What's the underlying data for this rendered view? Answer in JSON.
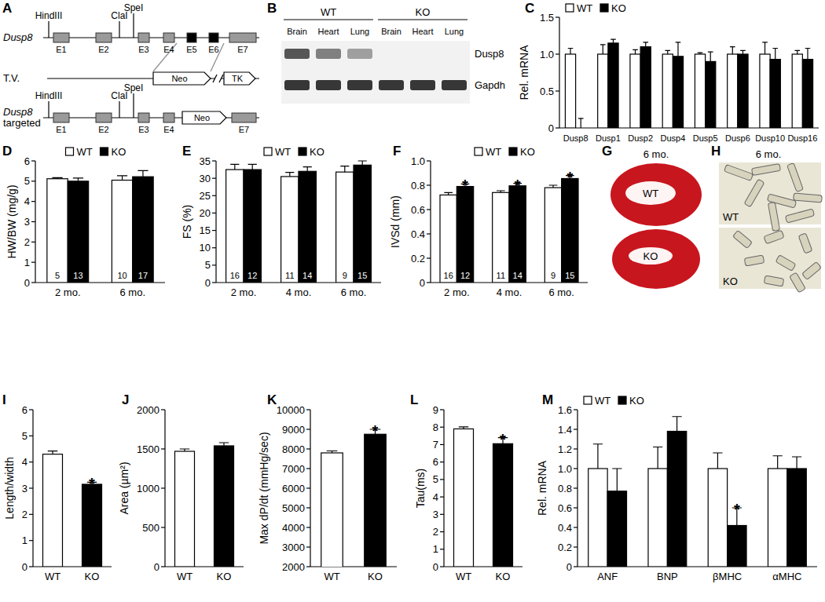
{
  "diagram": {
    "panel": "A",
    "alleles": [
      {
        "label": [
          "Dusp8"
        ],
        "sites": [
          "HindIII",
          "ClaI",
          "SpeI"
        ],
        "elements": [
          "E1",
          "E2",
          "E3",
          "E4",
          "E5",
          "E6",
          "E7"
        ]
      },
      {
        "label": [
          "T.V."
        ],
        "elements": [
          "Neo",
          "TK"
        ]
      },
      {
        "label": [
          "Dusp8",
          "targeted"
        ],
        "sites": [
          "HindIII",
          "ClaI",
          "SpeI"
        ],
        "elements": [
          "E1",
          "E2",
          "E3",
          "E4",
          "Neo",
          "E7"
        ]
      }
    ]
  },
  "gel": {
    "panel": "B",
    "groups": [
      "WT",
      "KO"
    ],
    "lanes": [
      "Brain",
      "Heart",
      "Lung",
      "Brain",
      "Heart",
      "Lung"
    ],
    "rows": [
      {
        "label": "Dusp8",
        "intensity": [
          0.75,
          0.55,
          0.4,
          0,
          0,
          0
        ]
      },
      {
        "label": "Gapdh",
        "intensity": [
          0.9,
          0.9,
          0.9,
          0.9,
          0.9,
          0.9
        ]
      }
    ]
  },
  "images": [
    {
      "panel": "G",
      "title": "6 mo.",
      "labels": [
        "WT",
        "KO"
      ]
    },
    {
      "panel": "H",
      "title": "6 mo.",
      "labels": [
        "WT",
        "KO"
      ]
    }
  ],
  "chart_data": [
    {
      "panel": "C",
      "type": "bar",
      "y_label": "Rel. mRNA",
      "categories": [
        "Dusp8",
        "Dusp1",
        "Dusp2",
        "Dusp4",
        "Dusp5",
        "Dusp6",
        "Dusp10",
        "Dusp16"
      ],
      "series": [
        {
          "name": "WT",
          "color": "#ffffff",
          "values": [
            1,
            1,
            1,
            1,
            1,
            1,
            1,
            1
          ],
          "errors": [
            0.08,
            0.13,
            0.06,
            0.05,
            0.02,
            0.1,
            0.16,
            0.05
          ]
        },
        {
          "name": "KO",
          "color": "#000000",
          "values": [
            0,
            1.15,
            1.1,
            0.97,
            0.9,
            1.0,
            0.93,
            0.93
          ],
          "errors": [
            0.13,
            0.05,
            0.06,
            0.19,
            0.13,
            0.05,
            0.15,
            0.15
          ]
        }
      ],
      "ylim": [
        0,
        1.5
      ],
      "yticks": [
        0,
        0.5,
        {
          "value": 1,
          "label": "1.0"
        },
        1.5
      ],
      "legend": "top-left"
    },
    {
      "panel": "D",
      "type": "bar",
      "y_label": "HW/BW (mg/g)",
      "categories": [
        "2 mo.",
        "6 mo."
      ],
      "series": [
        {
          "name": "WT",
          "color": "#ffffff",
          "values": [
            5.12,
            5.05
          ],
          "errors": [
            0.05,
            0.22
          ],
          "n": [
            5,
            10
          ]
        },
        {
          "name": "KO",
          "color": "#000000",
          "values": [
            5.0,
            5.22
          ],
          "errors": [
            0.15,
            0.3
          ],
          "n": [
            13,
            17
          ]
        }
      ],
      "ylim": [
        0,
        6
      ],
      "yticks": [
        0,
        1,
        2,
        3,
        4,
        5,
        6
      ],
      "legend": "top"
    },
    {
      "panel": "E",
      "type": "bar",
      "y_label": "FS (%)",
      "categories": [
        "2 mo.",
        "4 mo.",
        "6 mo."
      ],
      "series": [
        {
          "name": "WT",
          "color": "#ffffff",
          "values": [
            32.5,
            30.5,
            31.8
          ],
          "errors": [
            1.5,
            1.2,
            1.7
          ],
          "n": [
            16,
            11,
            9
          ]
        },
        {
          "name": "KO",
          "color": "#000000",
          "values": [
            32.5,
            32,
            33.8
          ],
          "errors": [
            1.5,
            1.3,
            1.2
          ],
          "n": [
            12,
            14,
            15
          ]
        }
      ],
      "ylim": [
        0,
        35
      ],
      "yticks": [
        0,
        5,
        10,
        15,
        20,
        25,
        30,
        35
      ],
      "legend": "top"
    },
    {
      "panel": "F",
      "type": "bar",
      "y_label": "IVSd (mm)",
      "categories": [
        "2 mo.",
        "4 mo.",
        "6 mo."
      ],
      "series": [
        {
          "name": "WT",
          "color": "#ffffff",
          "values": [
            0.72,
            0.74,
            0.78
          ],
          "errors": [
            0.02,
            0.015,
            0.02
          ],
          "n": [
            16,
            11,
            9
          ]
        },
        {
          "name": "KO",
          "color": "#000000",
          "values": [
            0.79,
            0.795,
            0.855
          ],
          "errors": [
            0.02,
            0.02,
            0.025
          ],
          "n": [
            12,
            14,
            15
          ],
          "annotations": [
            "*",
            "*",
            "*"
          ]
        }
      ],
      "ylim": [
        0,
        1
      ],
      "yticks": [
        0,
        0.2,
        0.4,
        0.6,
        0.8,
        {
          "value": 1,
          "label": "1.0"
        }
      ],
      "legend": "top"
    },
    {
      "panel": "I",
      "type": "bar",
      "y_label": "Length/width",
      "categories": [
        "WT",
        "KO"
      ],
      "values": [
        4.3,
        3.15
      ],
      "errors": [
        0.12,
        0.08
      ],
      "annotations": [
        null,
        "*"
      ],
      "colors": [
        "#ffffff",
        "#000000"
      ],
      "ylim": [
        0,
        6
      ],
      "yticks": [
        0,
        1,
        2,
        3,
        4,
        5,
        6
      ]
    },
    {
      "panel": "J",
      "type": "bar",
      "y_label": "Area (µm²)",
      "categories": [
        "WT",
        "KO"
      ],
      "values": [
        1470,
        1540
      ],
      "errors": [
        30,
        40
      ],
      "colors": [
        "#ffffff",
        "#000000"
      ],
      "ylim": [
        0,
        2000
      ],
      "yticks": [
        0,
        500,
        1000,
        1500,
        2000
      ]
    },
    {
      "panel": "K",
      "type": "bar",
      "y_label": "Max dP/dt (mmHg/sec)",
      "categories": [
        "WT",
        "KO"
      ],
      "values": [
        7800,
        8750
      ],
      "errors": [
        100,
        250
      ],
      "annotations": [
        null,
        "*"
      ],
      "colors": [
        "#ffffff",
        "#000000"
      ],
      "ylim": [
        2000,
        10000
      ],
      "yticks": [
        2000,
        3000,
        4000,
        5000,
        6000,
        7000,
        8000,
        9000,
        10000
      ]
    },
    {
      "panel": "L",
      "type": "bar",
      "y_label": "Tau(ms)",
      "categories": [
        "WT",
        "KO"
      ],
      "values": [
        7.9,
        7.05
      ],
      "errors": [
        0.12,
        0.35
      ],
      "annotations": [
        null,
        "*"
      ],
      "colors": [
        "#ffffff",
        "#000000"
      ],
      "ylim": [
        0,
        9
      ],
      "yticks": [
        0,
        1,
        2,
        3,
        4,
        5,
        6,
        7,
        8,
        9
      ]
    },
    {
      "panel": "M",
      "type": "bar",
      "y_label": "Rel. mRNA",
      "categories": [
        "ANF",
        "BNP",
        "βMHC",
        "αMHC"
      ],
      "series": [
        {
          "name": "WT",
          "color": "#ffffff",
          "values": [
            1,
            1,
            1,
            1
          ],
          "errors": [
            0.25,
            0.22,
            0.16,
            0.13
          ]
        },
        {
          "name": "KO",
          "color": "#000000",
          "values": [
            0.77,
            1.38,
            0.42,
            1.0
          ],
          "errors": [
            0.23,
            0.15,
            0.18,
            0.12
          ],
          "annotations": [
            null,
            null,
            "*",
            null
          ]
        }
      ],
      "ylim": [
        0,
        1.6
      ],
      "yticks": [
        0,
        0.2,
        0.4,
        0.6,
        0.8,
        {
          "value": 1,
          "label": "1.0"
        },
        1.2,
        1.4,
        1.6
      ],
      "legend": "top-left"
    }
  ]
}
